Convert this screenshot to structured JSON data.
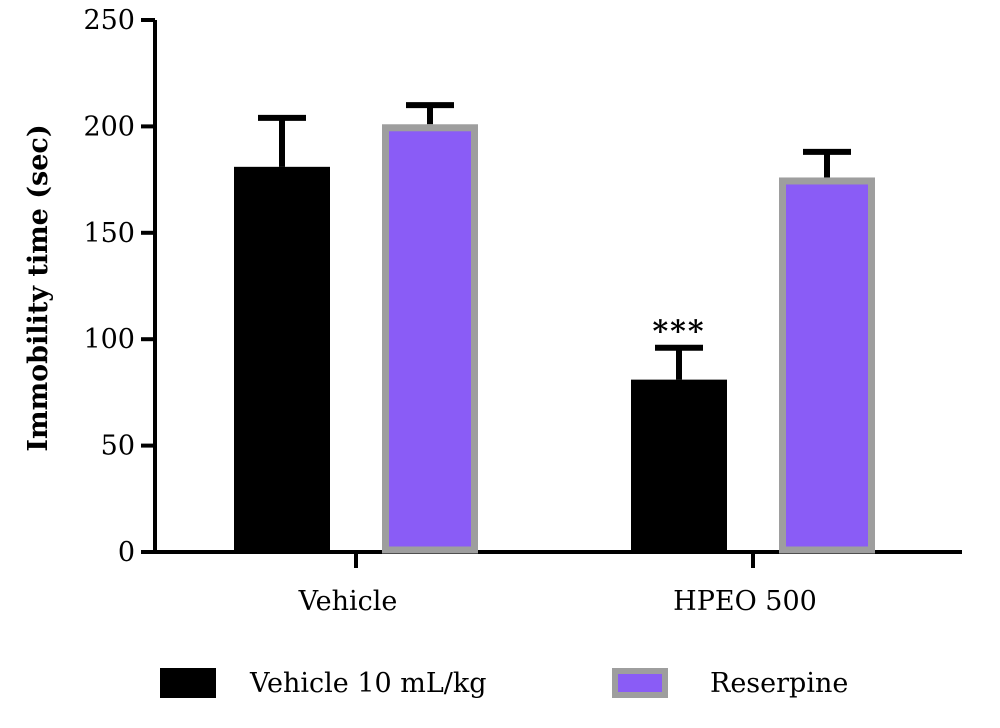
{
  "chart_data": {
    "type": "bar",
    "title": "",
    "xlabel": "",
    "ylabel": "Immobility time (sec)",
    "ylim": [
      0,
      250
    ],
    "yticks": [
      "0",
      "50",
      "100",
      "150",
      "200",
      "250"
    ],
    "categories": [
      "Vehicle",
      "HPEO 500"
    ],
    "series": [
      {
        "name": "Vehicle 10 mL/kg",
        "values": [
          181,
          81
        ],
        "errors": [
          23,
          15
        ],
        "fill": "#000000",
        "stroke": "#000000"
      },
      {
        "name": "Reserpine",
        "values": [
          201,
          176
        ],
        "errors": [
          9,
          12
        ],
        "fill": "#8a5cf6",
        "stroke": "#9e9e9e"
      }
    ],
    "annotations": [
      {
        "category": 1,
        "series": 0,
        "text": "***"
      }
    ],
    "grid": false,
    "legend_position": "bottom"
  }
}
